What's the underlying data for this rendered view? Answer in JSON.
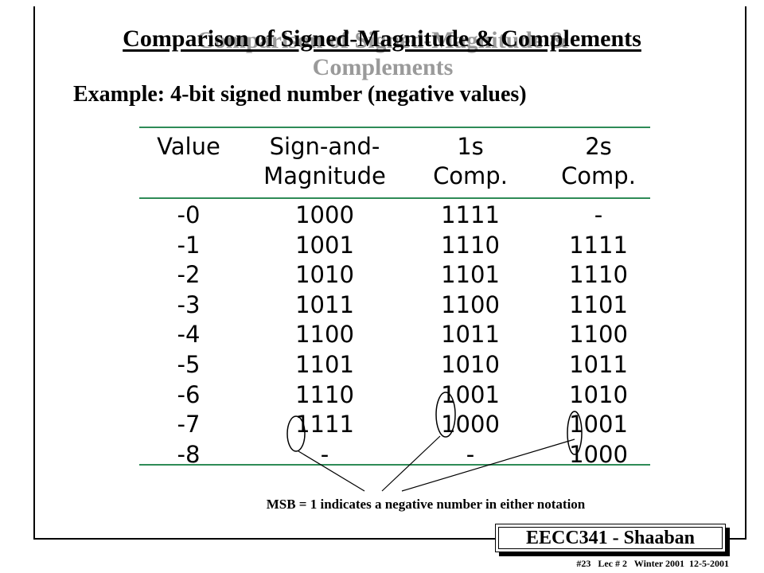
{
  "title": "Comparison of Signed-Magnitude & Complements",
  "subtitle": "Example:  4-bit signed number (negative values)",
  "table": {
    "headers": [
      {
        "line1": "Value",
        "line2": ""
      },
      {
        "line1": "Sign-and-",
        "line2": "Magnitude"
      },
      {
        "line1": "1s",
        "line2": "Comp."
      },
      {
        "line1": "2s",
        "line2": "Comp."
      }
    ],
    "rows": [
      [
        "-0",
        "1000",
        "1111",
        "-"
      ],
      [
        "-1",
        "1001",
        "1110",
        "1111"
      ],
      [
        "-2",
        "1010",
        "1101",
        "1110"
      ],
      [
        "-3",
        "1011",
        "1100",
        "1101"
      ],
      [
        "-4",
        "1100",
        "1011",
        "1100"
      ],
      [
        "-5",
        "1101",
        "1010",
        "1011"
      ],
      [
        "-6",
        "1110",
        "1001",
        "1010"
      ],
      [
        "-7",
        "1111",
        "1000",
        "1001"
      ],
      [
        "-8",
        "-",
        "-",
        "1000"
      ]
    ]
  },
  "note": "MSB = 1 indicates a negative number in either notation",
  "badge": "EECC341  - Shaaban",
  "footer": "#23   Lec # 2   Winter 2001  12-5-2001"
}
